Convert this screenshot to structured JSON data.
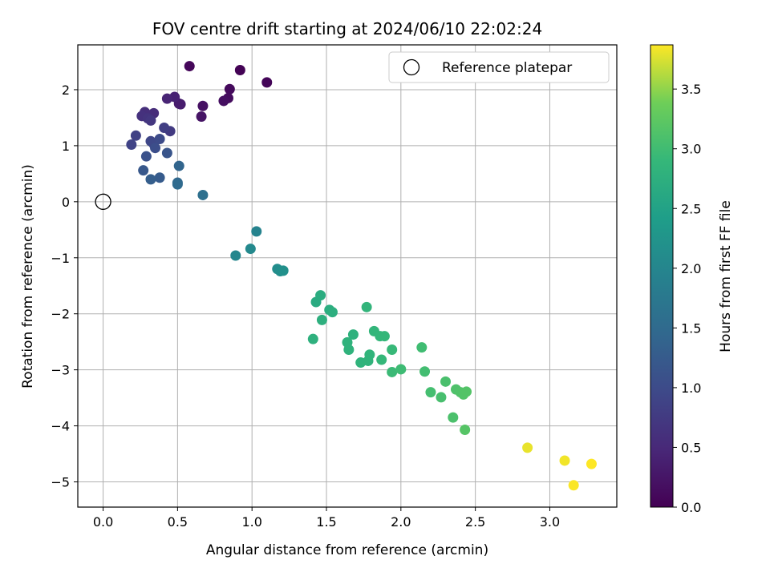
{
  "chart_data": {
    "type": "scatter",
    "title": "FOV centre drift starting at 2024/06/10 22:02:24",
    "xlabel": "Angular distance from reference (arcmin)",
    "ylabel": "Rotation from reference (arcmin)",
    "xlim": [
      -0.17,
      3.45
    ],
    "ylim": [
      -5.45,
      2.8
    ],
    "xticks": [
      0.0,
      0.5,
      1.0,
      1.5,
      2.0,
      2.5,
      3.0
    ],
    "xtick_labels": [
      "0.0",
      "0.5",
      "1.0",
      "1.5",
      "2.0",
      "2.5",
      "3.0"
    ],
    "yticks": [
      2,
      1,
      0,
      -1,
      -2,
      -3,
      -4,
      -5
    ],
    "ytick_labels": [
      "2",
      "1",
      "0",
      "−1",
      "−2",
      "−3",
      "−4",
      "−5"
    ],
    "grid": true,
    "legend": {
      "placement": "top-right",
      "entries": [
        "Reference platepar"
      ]
    },
    "reference_point": {
      "x": 0.0,
      "y": 0.0
    },
    "colorbar": {
      "label": "Hours from first FF file",
      "range": [
        0.0,
        3.87
      ],
      "ticks": [
        0.0,
        0.5,
        1.0,
        1.5,
        2.0,
        2.5,
        3.0,
        3.5
      ],
      "tick_labels": [
        "0.0",
        "0.5",
        "1.0",
        "1.5",
        "2.0",
        "2.5",
        "3.0",
        "3.5"
      ],
      "colormap": "viridis"
    },
    "points": [
      {
        "x": 0.92,
        "y": 2.35,
        "c": 0.02
      },
      {
        "x": 1.1,
        "y": 2.13,
        "c": 0.05
      },
      {
        "x": 0.58,
        "y": 2.42,
        "c": 0.08
      },
      {
        "x": 0.85,
        "y": 2.01,
        "c": 0.11
      },
      {
        "x": 0.84,
        "y": 1.85,
        "c": 0.14
      },
      {
        "x": 0.81,
        "y": 1.8,
        "c": 0.17
      },
      {
        "x": 0.67,
        "y": 1.71,
        "c": 0.2
      },
      {
        "x": 0.66,
        "y": 1.52,
        "c": 0.23
      },
      {
        "x": 0.51,
        "y": 1.75,
        "c": 0.3
      },
      {
        "x": 0.52,
        "y": 1.74,
        "c": 0.33
      },
      {
        "x": 0.48,
        "y": 1.87,
        "c": 0.4
      },
      {
        "x": 0.43,
        "y": 1.84,
        "c": 0.45
      },
      {
        "x": 0.34,
        "y": 1.58,
        "c": 0.55
      },
      {
        "x": 0.28,
        "y": 1.6,
        "c": 0.58
      },
      {
        "x": 0.26,
        "y": 1.53,
        "c": 0.62
      },
      {
        "x": 0.3,
        "y": 1.49,
        "c": 0.66
      },
      {
        "x": 0.32,
        "y": 1.45,
        "c": 0.7
      },
      {
        "x": 0.45,
        "y": 1.26,
        "c": 0.75
      },
      {
        "x": 0.41,
        "y": 1.32,
        "c": 0.8
      },
      {
        "x": 0.22,
        "y": 1.18,
        "c": 0.85
      },
      {
        "x": 0.19,
        "y": 1.02,
        "c": 0.88
      },
      {
        "x": 0.32,
        "y": 1.08,
        "c": 0.92
      },
      {
        "x": 0.34,
        "y": 1.03,
        "c": 0.95
      },
      {
        "x": 0.38,
        "y": 1.12,
        "c": 1.0
      },
      {
        "x": 0.35,
        "y": 0.96,
        "c": 1.05
      },
      {
        "x": 0.29,
        "y": 0.81,
        "c": 1.1
      },
      {
        "x": 0.43,
        "y": 0.87,
        "c": 1.15
      },
      {
        "x": 0.27,
        "y": 0.56,
        "c": 1.2
      },
      {
        "x": 0.38,
        "y": 0.43,
        "c": 1.25
      },
      {
        "x": 0.32,
        "y": 0.4,
        "c": 1.3
      },
      {
        "x": 0.51,
        "y": 0.64,
        "c": 1.4
      },
      {
        "x": 0.5,
        "y": 0.34,
        "c": 1.45
      },
      {
        "x": 0.5,
        "y": 0.31,
        "c": 1.5
      },
      {
        "x": 0.67,
        "y": 0.12,
        "c": 1.6
      },
      {
        "x": 1.03,
        "y": -0.53,
        "c": 1.95
      },
      {
        "x": 0.89,
        "y": -0.96,
        "c": 2.0
      },
      {
        "x": 0.99,
        "y": -0.84,
        "c": 2.05
      },
      {
        "x": 1.17,
        "y": -1.2,
        "c": 2.12
      },
      {
        "x": 1.19,
        "y": -1.24,
        "c": 2.15
      },
      {
        "x": 1.21,
        "y": -1.23,
        "c": 2.18
      },
      {
        "x": 1.43,
        "y": -1.79,
        "c": 2.65
      },
      {
        "x": 1.46,
        "y": -1.67,
        "c": 2.68
      },
      {
        "x": 1.52,
        "y": -1.93,
        "c": 2.7
      },
      {
        "x": 1.54,
        "y": -1.97,
        "c": 2.72
      },
      {
        "x": 1.47,
        "y": -2.11,
        "c": 2.74
      },
      {
        "x": 1.41,
        "y": -2.45,
        "c": 2.76
      },
      {
        "x": 1.68,
        "y": -2.37,
        "c": 2.78
      },
      {
        "x": 1.64,
        "y": -2.51,
        "c": 2.8
      },
      {
        "x": 1.65,
        "y": -2.64,
        "c": 2.8
      },
      {
        "x": 1.73,
        "y": -2.87,
        "c": 2.82
      },
      {
        "x": 1.78,
        "y": -2.84,
        "c": 2.83
      },
      {
        "x": 1.79,
        "y": -2.73,
        "c": 2.84
      },
      {
        "x": 1.77,
        "y": -1.88,
        "c": 2.85
      },
      {
        "x": 1.82,
        "y": -2.31,
        "c": 2.86
      },
      {
        "x": 1.86,
        "y": -2.4,
        "c": 2.88
      },
      {
        "x": 1.89,
        "y": -2.4,
        "c": 2.89
      },
      {
        "x": 1.87,
        "y": -2.82,
        "c": 2.9
      },
      {
        "x": 1.94,
        "y": -2.64,
        "c": 2.92
      },
      {
        "x": 1.94,
        "y": -3.04,
        "c": 2.95
      },
      {
        "x": 2.0,
        "y": -2.99,
        "c": 2.98
      },
      {
        "x": 2.14,
        "y": -2.6,
        "c": 3.0
      },
      {
        "x": 2.16,
        "y": -3.03,
        "c": 3.02
      },
      {
        "x": 2.2,
        "y": -3.4,
        "c": 3.04
      },
      {
        "x": 2.27,
        "y": -3.49,
        "c": 3.06
      },
      {
        "x": 2.3,
        "y": -3.21,
        "c": 3.08
      },
      {
        "x": 2.35,
        "y": -3.85,
        "c": 3.1
      },
      {
        "x": 2.37,
        "y": -3.35,
        "c": 3.12
      },
      {
        "x": 2.4,
        "y": -3.4,
        "c": 3.14
      },
      {
        "x": 2.42,
        "y": -3.44,
        "c": 3.15
      },
      {
        "x": 2.44,
        "y": -3.39,
        "c": 3.16
      },
      {
        "x": 2.43,
        "y": -4.07,
        "c": 3.18
      },
      {
        "x": 2.85,
        "y": -4.39,
        "c": 3.8
      },
      {
        "x": 3.1,
        "y": -4.62,
        "c": 3.83
      },
      {
        "x": 3.16,
        "y": -5.06,
        "c": 3.86
      },
      {
        "x": 3.28,
        "y": -4.68,
        "c": 3.87
      }
    ]
  }
}
